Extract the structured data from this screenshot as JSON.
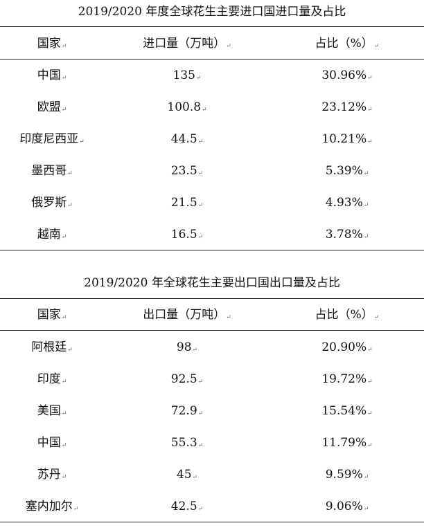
{
  "tables": [
    {
      "caption": "2019/2020 年度全球花生主要进口国进口量及占比",
      "headers": [
        "国家",
        "进口量（万吨）",
        "占比（%）"
      ],
      "rows": [
        [
          "中国",
          "135",
          "30.96%"
        ],
        [
          "欧盟",
          "100.8",
          "23.12%"
        ],
        [
          "印度尼西亚",
          "44.5",
          "10.21%"
        ],
        [
          "墨西哥",
          "23.5",
          "5.39%"
        ],
        [
          "俄罗斯",
          "21.5",
          "4.93%"
        ],
        [
          "越南",
          "16.5",
          "3.78%"
        ]
      ]
    },
    {
      "caption": "2019/2020 年全球花生主要出口国出口量及占比",
      "headers": [
        "国家",
        "出口量（万吨）",
        "占比（%）"
      ],
      "rows": [
        [
          "阿根廷",
          "98",
          "20.90%"
        ],
        [
          "印度",
          "92.5",
          "19.72%"
        ],
        [
          "美国",
          "72.9",
          "15.54%"
        ],
        [
          "中国",
          "55.3",
          "11.79%"
        ],
        [
          "苏丹",
          "45",
          "9.59%"
        ],
        [
          "塞内加尔",
          "42.5",
          "9.06%"
        ]
      ]
    }
  ]
}
